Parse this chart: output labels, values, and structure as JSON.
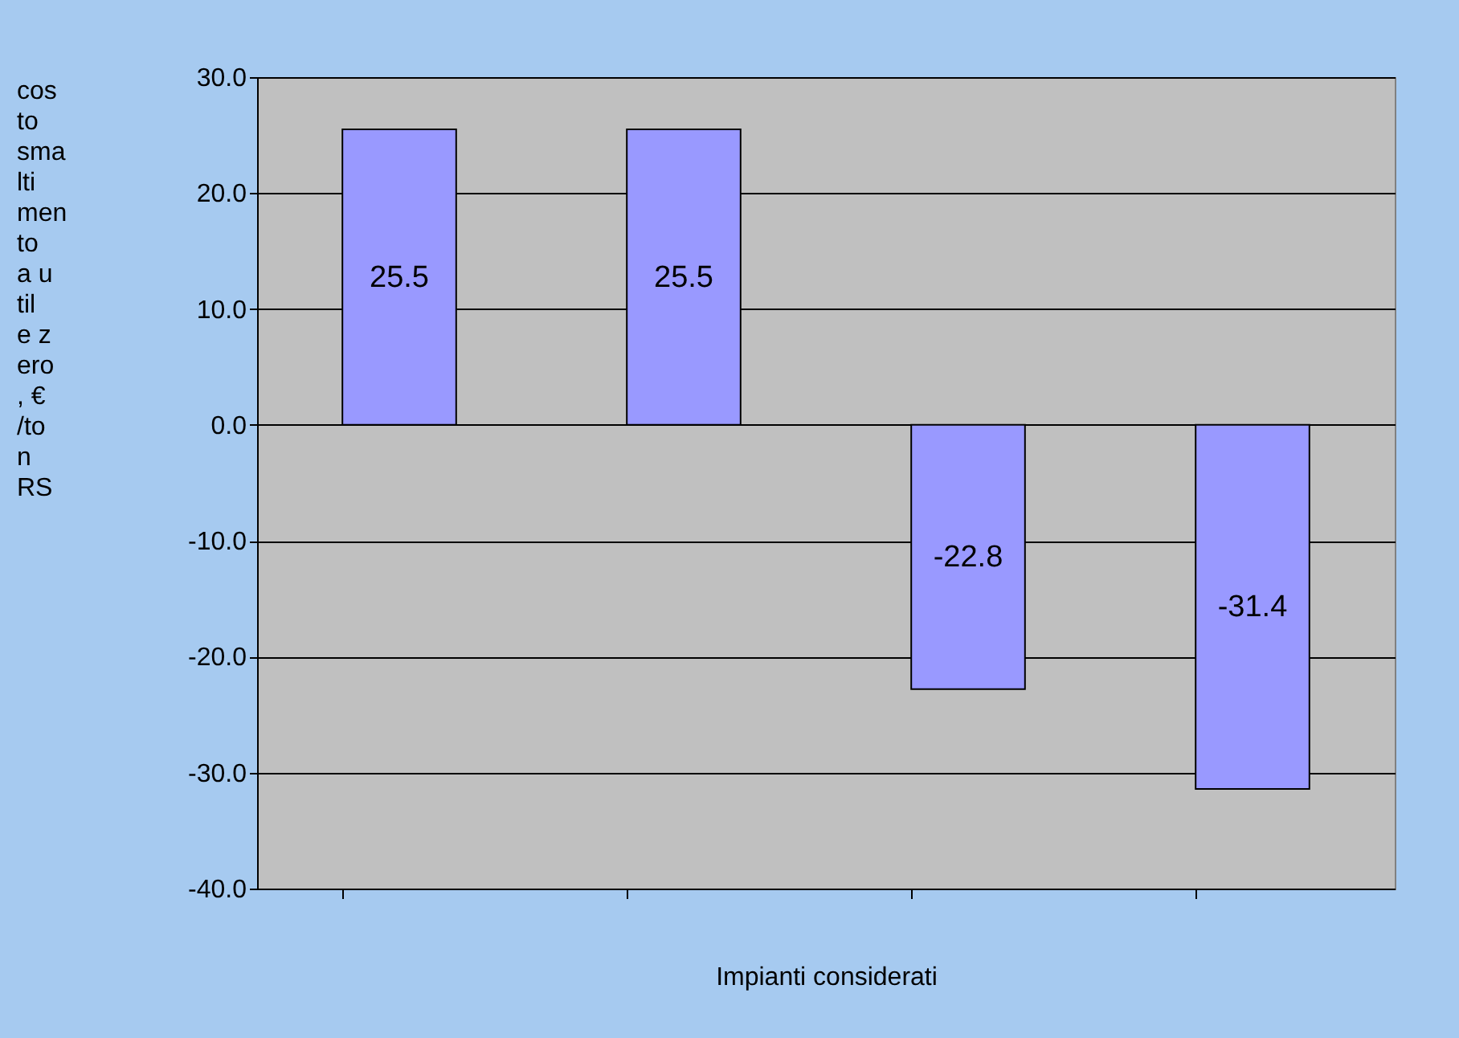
{
  "chart_data": {
    "type": "bar",
    "xlabel": "Impianti considerati",
    "ylabel": "costo smaltimento a utile zero, €/ton RS",
    "categories": [
      null,
      null,
      null,
      null
    ],
    "values": [
      25.5,
      25.5,
      -22.8,
      -31.4
    ],
    "color": "#9999ff",
    "data_labels": true,
    "ylim": [
      -40,
      30
    ],
    "yticks": [
      {
        "value": 30,
        "label": "30.0"
      },
      {
        "value": 20,
        "label": "20.0"
      },
      {
        "value": 10,
        "label": "10.0"
      },
      {
        "value": 0,
        "label": "0.0"
      },
      {
        "value": -10,
        "label": "-10.0"
      },
      {
        "value": -20,
        "label": "-20.0"
      },
      {
        "value": -30,
        "label": "-30.0"
      },
      {
        "value": -40,
        "label": "-40.0"
      }
    ],
    "grid": "y"
  }
}
